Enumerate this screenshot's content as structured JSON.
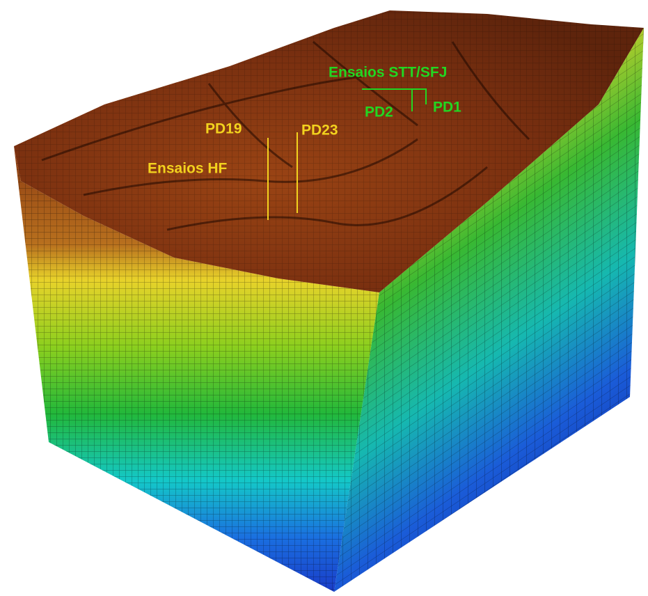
{
  "labels": {
    "stt_group": "Ensaios STT/SFJ",
    "pd2": "PD2",
    "pd1": "PD1",
    "pd19": "PD19",
    "pd23": "PD23",
    "hf_group": "Ensaios HF"
  }
}
